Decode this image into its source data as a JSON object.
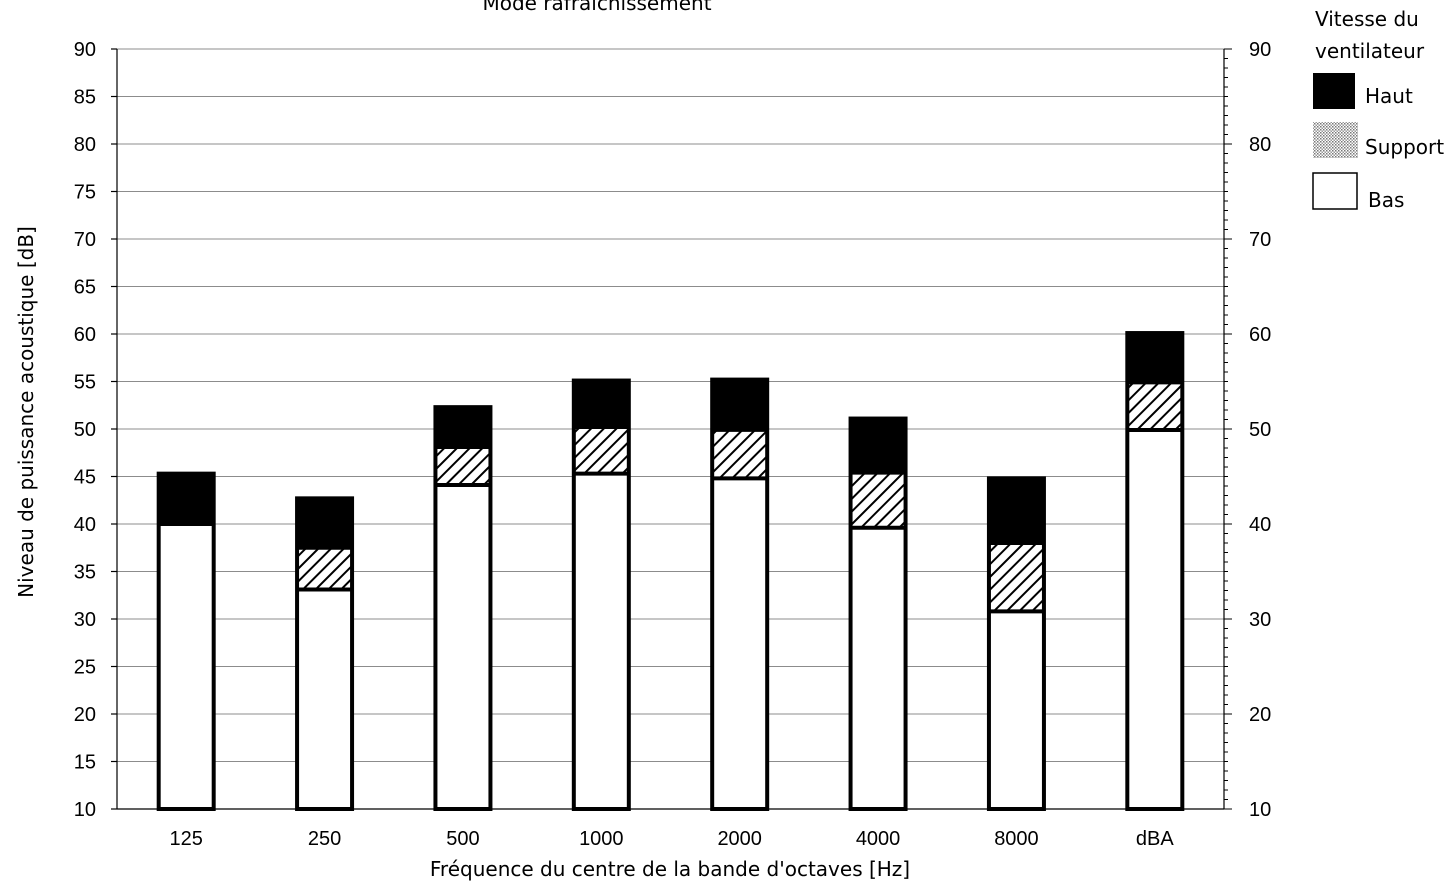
{
  "chart_data": {
    "type": "bar",
    "stacked": true,
    "title": "Mode rafraîchissement",
    "xlabel": "Fréquence du centre de la bande d'octaves [Hz]",
    "ylabel": "Niveau de puissance acoustique [dB]",
    "ylim": [
      10,
      90
    ],
    "ytick_step": 5,
    "y2lim": [
      10,
      90
    ],
    "y2tick_step": 10,
    "grid": true,
    "categories": [
      "125",
      "250",
      "500",
      "1000",
      "2000",
      "4000",
      "8000",
      "dBA"
    ],
    "series": [
      {
        "name": "Haut",
        "fill": "solid-black",
        "values": [
          45.3,
          42.7,
          52.3,
          55.1,
          55.2,
          51.1,
          44.8,
          60.1
        ]
      },
      {
        "name": "Support",
        "fill": "hatched",
        "values": [
          40.0,
          37.4,
          48.0,
          50.1,
          49.8,
          45.3,
          37.9,
          54.8
        ]
      },
      {
        "name": "Bas",
        "fill": "white",
        "values": [
          40.0,
          33.1,
          44.1,
          45.3,
          44.8,
          39.6,
          30.8,
          49.9
        ]
      }
    ],
    "legend": {
      "title_lines": [
        "Vitesse du",
        "ventilateur"
      ],
      "position": "top-right"
    },
    "colors": {
      "haut": "#000000",
      "bas": "#ffffff",
      "grid": "#8c8c8c"
    }
  }
}
